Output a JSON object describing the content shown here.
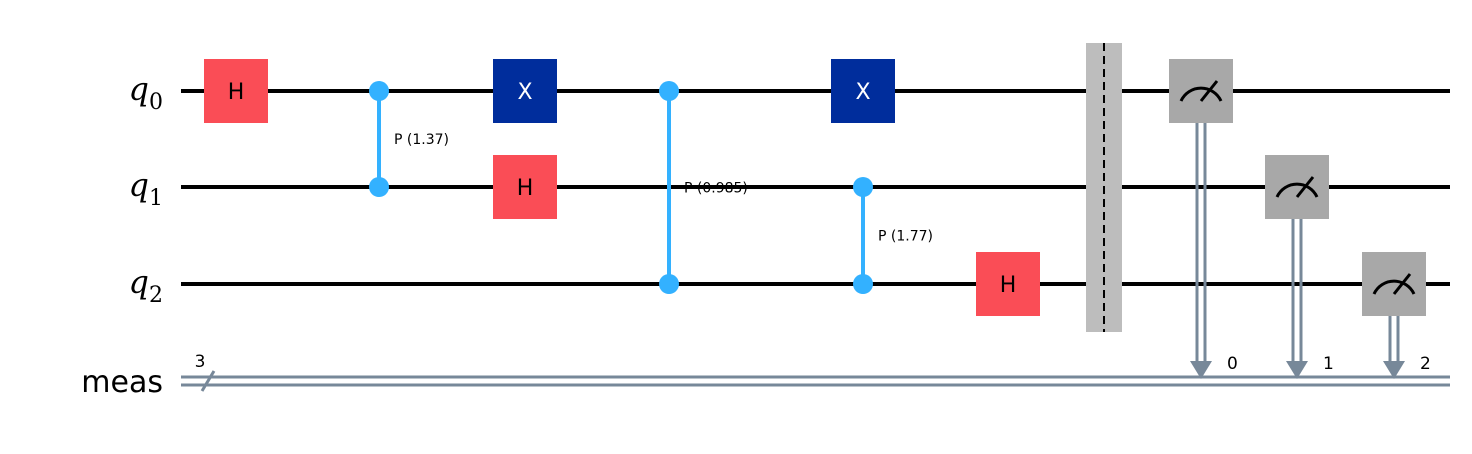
{
  "qubits": [
    {
      "name": "q",
      "index": "0"
    },
    {
      "name": "q",
      "index": "1"
    },
    {
      "name": "q",
      "index": "2"
    }
  ],
  "classical_register": {
    "name": "meas",
    "width": "3"
  },
  "colors": {
    "wire": "#000000",
    "classical_wire": "#778899",
    "h_gate": "#FA4D56",
    "x_gate": "#002D9C",
    "cp_gate": "#33B1FF",
    "measure_gate": "#A8A8A8",
    "barrier": "#BDBDBD"
  },
  "gates": [
    {
      "type": "H",
      "label": "H",
      "qubit": 0,
      "column": 0
    },
    {
      "type": "CP",
      "label": "P (1.37)",
      "qubits": [
        0,
        1
      ],
      "column": 1
    },
    {
      "type": "X",
      "label": "X",
      "qubit": 0,
      "column": 2
    },
    {
      "type": "H",
      "label": "H",
      "qubit": 1,
      "column": 2
    },
    {
      "type": "CP",
      "label": "P (0.985)",
      "qubits": [
        0,
        2
      ],
      "column": 3
    },
    {
      "type": "X",
      "label": "X",
      "qubit": 0,
      "column": 4
    },
    {
      "type": "CP",
      "label": "P (1.77)",
      "qubits": [
        1,
        2
      ],
      "column": 4
    },
    {
      "type": "H",
      "label": "H",
      "qubit": 2,
      "column": 5
    }
  ],
  "barrier": {
    "qubits": [
      0,
      1,
      2
    ],
    "column": 6
  },
  "measurements": [
    {
      "qubit": 0,
      "clbit": "0",
      "column": 7
    },
    {
      "qubit": 1,
      "clbit": "1",
      "column": 8
    },
    {
      "qubit": 2,
      "clbit": "2",
      "column": 9
    }
  ]
}
